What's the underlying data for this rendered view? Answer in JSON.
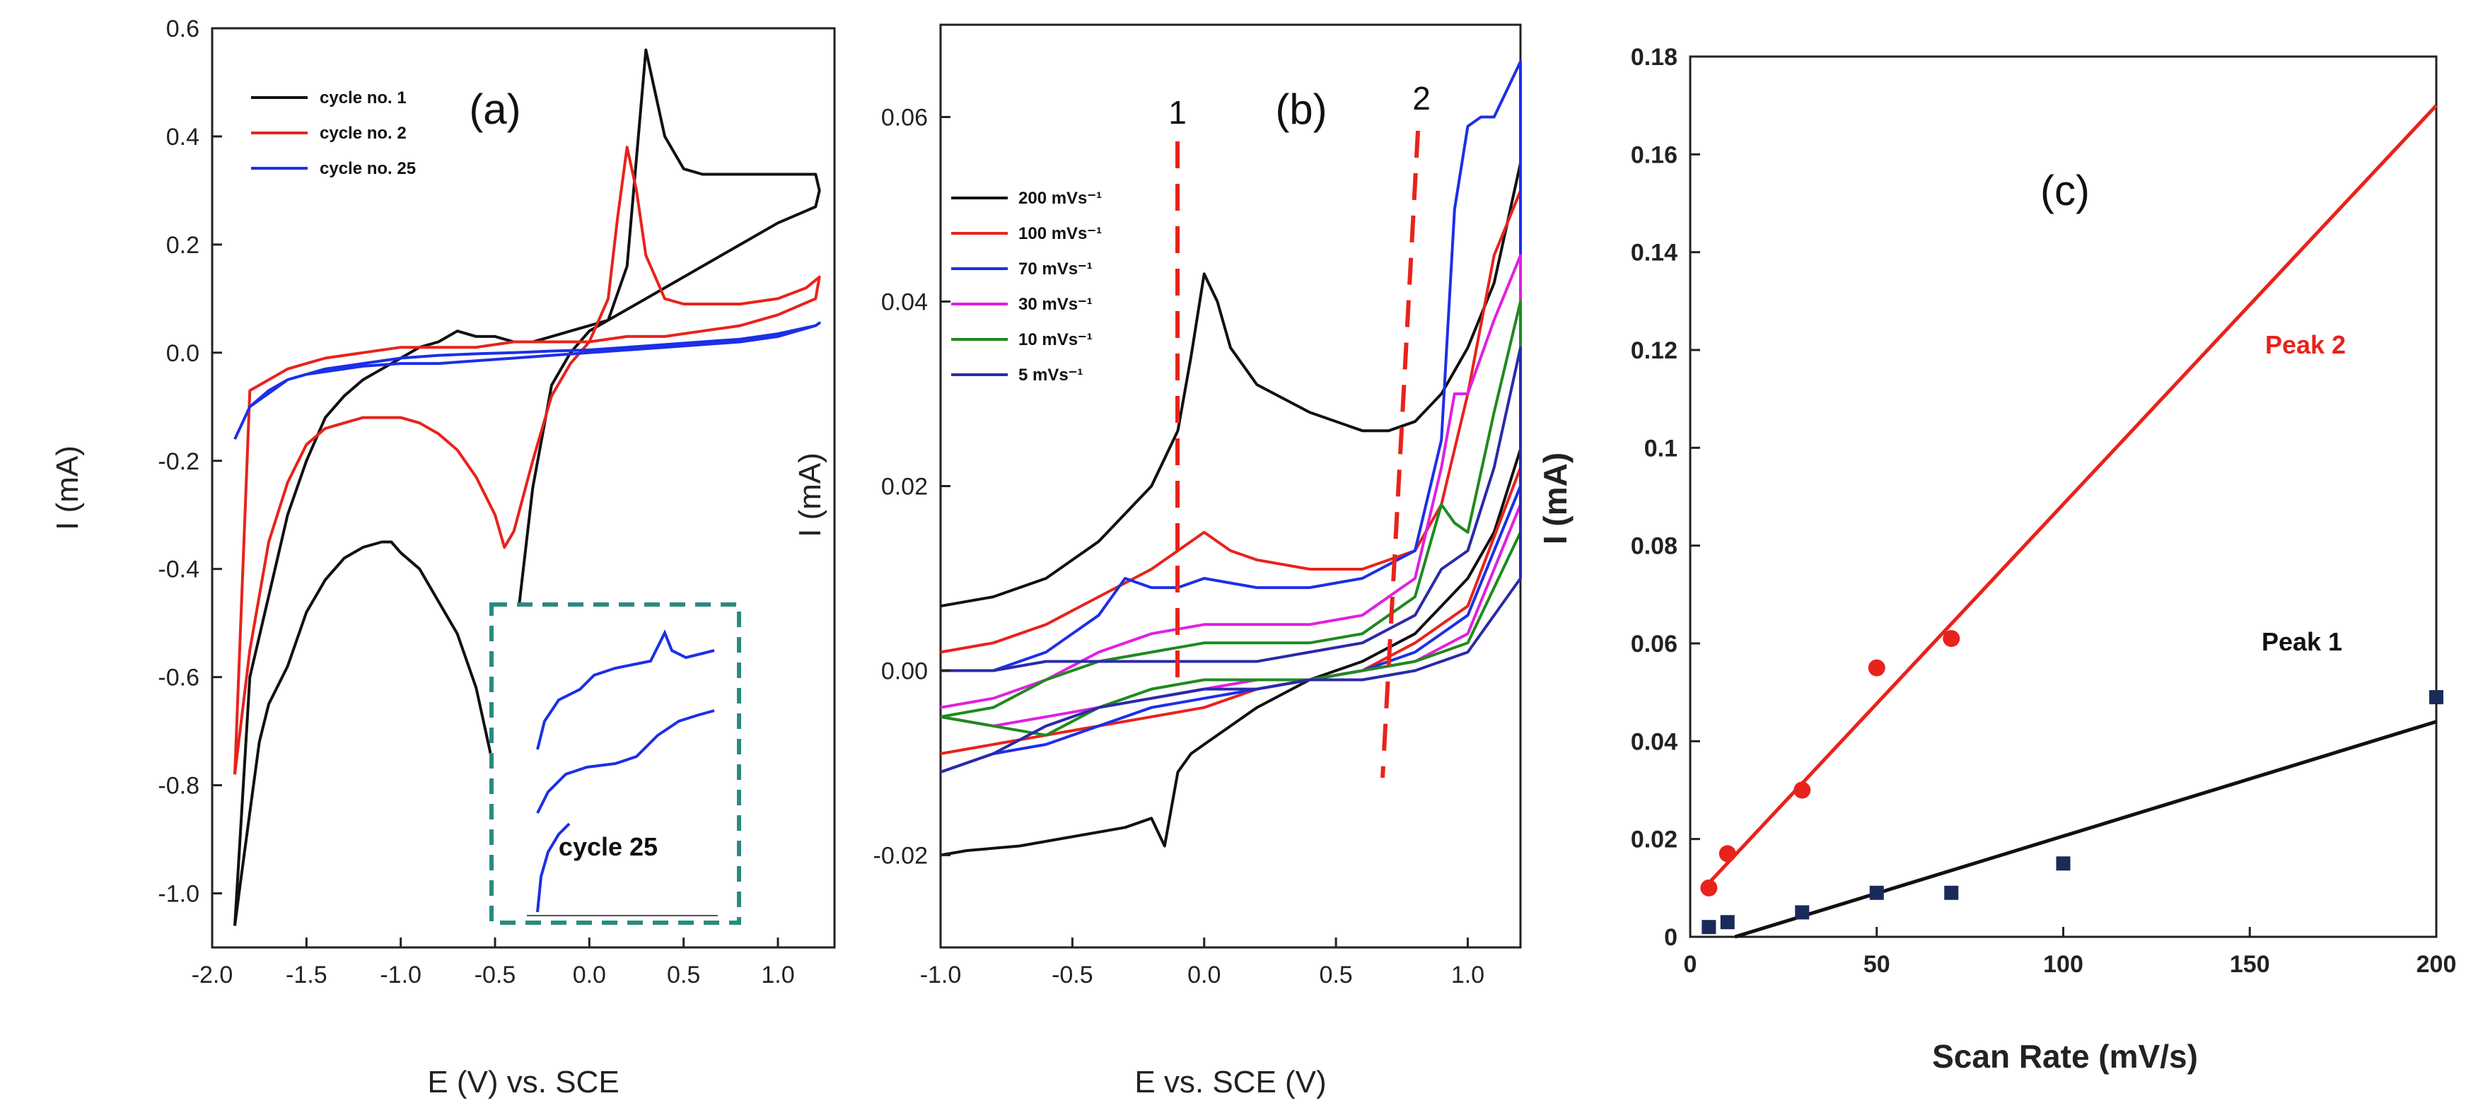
{
  "chart_data": [
    {
      "panel": "a",
      "type": "line",
      "panel_label": "(a)",
      "xlabel": "E (V) vs. SCE",
      "ylabel": "I (mA)",
      "xlim": [
        -2.0,
        1.3
      ],
      "ylim": [
        -1.1,
        0.6
      ],
      "xticks": [
        "-2.0",
        "-1.5",
        "-1.0",
        "-0.5",
        "0.0",
        "0.5",
        "1.0"
      ],
      "yticks": [
        "0.6",
        "0.4",
        "0.2",
        "0.0",
        "-0.2",
        "-0.4",
        "-0.6",
        "-0.8",
        "-1.0"
      ],
      "legend_position": "top-left",
      "series": [
        {
          "name": "cycle no. 1",
          "color": "#111111",
          "x": [
            -1.88,
            -1.85,
            -1.8,
            -1.75,
            -1.7,
            -1.6,
            -1.5,
            -1.4,
            -1.3,
            -1.2,
            -1.1,
            -1.05,
            -1.0,
            -0.9,
            -0.8,
            -0.7,
            -0.6,
            -0.55,
            -0.5,
            -0.45,
            -0.4,
            -0.3,
            -0.2,
            -0.1,
            0.0,
            0.1,
            0.2,
            0.3,
            0.4,
            0.5,
            0.6,
            0.7,
            0.8,
            0.9,
            1.0,
            1.1,
            1.2,
            1.22,
            1.2,
            1.0,
            0.8,
            0.6,
            0.4,
            0.2,
            0.1,
            0.0,
            -0.1,
            -0.2,
            -0.3,
            -0.4,
            -0.5,
            -0.6,
            -0.7,
            -0.75,
            -0.8,
            -0.9,
            -1.0,
            -1.1,
            -1.2,
            -1.3,
            -1.4,
            -1.5,
            -1.6,
            -1.7,
            -1.8,
            -1.88
          ],
          "y": [
            -1.06,
            -0.98,
            -0.85,
            -0.72,
            -0.65,
            -0.58,
            -0.48,
            -0.42,
            -0.38,
            -0.36,
            -0.35,
            -0.35,
            -0.37,
            -0.4,
            -0.46,
            -0.52,
            -0.62,
            -0.7,
            -0.78,
            -0.72,
            -0.55,
            -0.25,
            -0.06,
            0.0,
            0.04,
            0.06,
            0.16,
            0.56,
            0.4,
            0.34,
            0.33,
            0.33,
            0.33,
            0.33,
            0.33,
            0.33,
            0.33,
            0.3,
            0.27,
            0.24,
            0.2,
            0.16,
            0.12,
            0.08,
            0.06,
            0.05,
            0.04,
            0.03,
            0.02,
            0.02,
            0.03,
            0.03,
            0.04,
            0.03,
            0.02,
            0.01,
            -0.01,
            -0.03,
            -0.05,
            -0.08,
            -0.12,
            -0.2,
            -0.3,
            -0.45,
            -0.6,
            -1.06
          ]
        },
        {
          "name": "cycle no. 2",
          "color": "#e8231b",
          "x": [
            -1.88,
            -1.8,
            -1.7,
            -1.6,
            -1.5,
            -1.4,
            -1.3,
            -1.2,
            -1.1,
            -1.0,
            -0.9,
            -0.8,
            -0.7,
            -0.6,
            -0.5,
            -0.45,
            -0.4,
            -0.3,
            -0.2,
            -0.1,
            0.0,
            0.1,
            0.15,
            0.2,
            0.25,
            0.3,
            0.4,
            0.5,
            0.6,
            0.8,
            1.0,
            1.15,
            1.22,
            1.2,
            1.0,
            0.8,
            0.6,
            0.4,
            0.2,
            0.0,
            -0.2,
            -0.4,
            -0.6,
            -0.8,
            -1.0,
            -1.2,
            -1.4,
            -1.5,
            -1.6,
            -1.7,
            -1.8,
            -1.88
          ],
          "y": [
            -0.78,
            -0.55,
            -0.35,
            -0.24,
            -0.17,
            -0.14,
            -0.13,
            -0.12,
            -0.12,
            -0.12,
            -0.13,
            -0.15,
            -0.18,
            -0.23,
            -0.3,
            -0.36,
            -0.33,
            -0.2,
            -0.08,
            -0.02,
            0.02,
            0.1,
            0.25,
            0.38,
            0.3,
            0.18,
            0.1,
            0.09,
            0.09,
            0.09,
            0.1,
            0.12,
            0.14,
            0.1,
            0.07,
            0.05,
            0.04,
            0.03,
            0.03,
            0.02,
            0.02,
            0.02,
            0.01,
            0.01,
            0.01,
            0.0,
            -0.01,
            -0.02,
            -0.03,
            -0.05,
            -0.07,
            -0.78
          ]
        },
        {
          "name": "cycle no. 25",
          "color": "#1c2fe8",
          "x": [
            -1.88,
            -1.8,
            -1.7,
            -1.6,
            -1.5,
            -1.4,
            -1.3,
            -1.2,
            -1.0,
            -0.8,
            -0.6,
            -0.4,
            -0.2,
            0.0,
            0.2,
            0.4,
            0.6,
            0.8,
            1.0,
            1.1,
            1.2,
            1.22,
            1.2,
            1.0,
            0.8,
            0.6,
            0.4,
            0.2,
            0.0,
            -0.2,
            -0.4,
            -0.6,
            -0.8,
            -1.0,
            -1.2,
            -1.4,
            -1.6,
            -1.8,
            -1.88
          ],
          "y": [
            -0.16,
            -0.1,
            -0.07,
            -0.05,
            -0.04,
            -0.035,
            -0.03,
            -0.025,
            -0.02,
            -0.02,
            -0.015,
            -0.01,
            -0.005,
            0.0,
            0.005,
            0.01,
            0.015,
            0.02,
            0.03,
            0.04,
            0.05,
            0.055,
            0.05,
            0.035,
            0.025,
            0.02,
            0.015,
            0.01,
            0.005,
            0.003,
            0.0,
            -0.002,
            -0.005,
            -0.01,
            -0.02,
            -0.03,
            -0.05,
            -0.1,
            -0.16
          ]
        }
      ],
      "inset_label": "cycle 25"
    },
    {
      "panel": "b",
      "type": "line",
      "panel_label": "(b)",
      "xlabel": "E vs. SCE (V)",
      "ylabel": "I (mA)",
      "xlim": [
        -1.0,
        1.2
      ],
      "ylim": [
        -0.03,
        0.07
      ],
      "xticks": [
        "-1.0",
        "-0.5",
        "0.0",
        "0.5",
        "1.0"
      ],
      "yticks": [
        "0.06",
        "0.04",
        "0.02",
        "0.00",
        "-0.02"
      ],
      "legend_position": "top-left",
      "peak_markers": [
        "1",
        "2"
      ],
      "series": [
        {
          "name": "200 mVs⁻¹",
          "color": "#111111",
          "x": [
            -1.0,
            -0.8,
            -0.6,
            -0.4,
            -0.2,
            -0.1,
            -0.05,
            0.0,
            0.05,
            0.1,
            0.2,
            0.4,
            0.6,
            0.7,
            0.8,
            0.9,
            1.0,
            1.1,
            1.2,
            1.2,
            1.1,
            1.0,
            0.9,
            0.8,
            0.6,
            0.4,
            0.2,
            0.0,
            -0.05,
            -0.1,
            -0.15,
            -0.2,
            -0.3,
            -0.5,
            -0.7,
            -0.9,
            -1.0
          ],
          "y": [
            0.007,
            0.008,
            0.01,
            0.014,
            0.02,
            0.026,
            0.034,
            0.043,
            0.04,
            0.035,
            0.031,
            0.028,
            0.026,
            0.026,
            0.027,
            0.03,
            0.035,
            0.042,
            0.055,
            0.024,
            0.015,
            0.01,
            0.007,
            0.004,
            0.001,
            -0.001,
            -0.004,
            -0.008,
            -0.009,
            -0.011,
            -0.019,
            -0.016,
            -0.017,
            -0.018,
            -0.019,
            -0.0195,
            -0.02
          ]
        },
        {
          "name": "100 mVs⁻¹",
          "color": "#e8231b",
          "x": [
            -1.0,
            -0.8,
            -0.6,
            -0.4,
            -0.2,
            -0.1,
            0.0,
            0.1,
            0.2,
            0.4,
            0.6,
            0.8,
            0.9,
            1.0,
            1.1,
            1.2,
            1.2,
            1.0,
            0.8,
            0.6,
            0.4,
            0.2,
            0.0,
            -0.2,
            -0.4,
            -0.6,
            -0.8,
            -1.0
          ],
          "y": [
            0.002,
            0.003,
            0.005,
            0.008,
            0.011,
            0.013,
            0.015,
            0.013,
            0.012,
            0.011,
            0.011,
            0.013,
            0.018,
            0.03,
            0.045,
            0.052,
            0.022,
            0.007,
            0.003,
            0.0,
            -0.001,
            -0.002,
            -0.004,
            -0.005,
            -0.006,
            -0.007,
            -0.008,
            -0.009
          ]
        },
        {
          "name": "70 mVs⁻¹",
          "color": "#1c2fe8",
          "x": [
            -1.0,
            -0.8,
            -0.6,
            -0.4,
            -0.3,
            -0.2,
            -0.1,
            0.0,
            0.2,
            0.4,
            0.6,
            0.8,
            0.9,
            0.95,
            1.0,
            1.05,
            1.1,
            1.2,
            1.2,
            1.0,
            0.8,
            0.6,
            0.4,
            0.2,
            0.0,
            -0.2,
            -0.4,
            -0.6,
            -0.8,
            -1.0
          ],
          "y": [
            0.0,
            0.0,
            0.002,
            0.006,
            0.01,
            0.009,
            0.009,
            0.01,
            0.009,
            0.009,
            0.01,
            0.013,
            0.025,
            0.05,
            0.059,
            0.06,
            0.06,
            0.066,
            0.02,
            0.006,
            0.002,
            0.0,
            -0.001,
            -0.002,
            -0.003,
            -0.004,
            -0.006,
            -0.008,
            -0.009,
            -0.011
          ]
        },
        {
          "name": "30 mVs⁻¹",
          "color": "#e020e0",
          "x": [
            -1.0,
            -0.8,
            -0.6,
            -0.4,
            -0.2,
            0.0,
            0.2,
            0.4,
            0.6,
            0.8,
            0.9,
            0.95,
            1.0,
            1.1,
            1.2,
            1.2,
            1.0,
            0.8,
            0.6,
            0.4,
            0.2,
            0.0,
            -0.2,
            -0.4,
            -0.6,
            -0.8,
            -1.0
          ],
          "y": [
            -0.004,
            -0.003,
            -0.001,
            0.002,
            0.004,
            0.005,
            0.005,
            0.005,
            0.006,
            0.01,
            0.022,
            0.03,
            0.03,
            0.038,
            0.045,
            0.018,
            0.004,
            0.001,
            0.0,
            -0.001,
            -0.001,
            -0.002,
            -0.003,
            -0.004,
            -0.005,
            -0.006,
            -0.005
          ]
        },
        {
          "name": "10 mVs⁻¹",
          "color": "#1f8a1f",
          "x": [
            -1.0,
            -0.8,
            -0.6,
            -0.4,
            -0.2,
            0.0,
            0.2,
            0.4,
            0.6,
            0.8,
            0.9,
            0.95,
            1.0,
            1.1,
            1.2,
            1.2,
            1.0,
            0.8,
            0.6,
            0.4,
            0.2,
            0.0,
            -0.2,
            -0.4,
            -0.6,
            -0.8,
            -1.0
          ],
          "y": [
            -0.005,
            -0.004,
            -0.001,
            0.001,
            0.002,
            0.003,
            0.003,
            0.003,
            0.004,
            0.008,
            0.018,
            0.016,
            0.015,
            0.028,
            0.04,
            0.015,
            0.003,
            0.001,
            0.0,
            -0.001,
            -0.001,
            -0.001,
            -0.002,
            -0.004,
            -0.007,
            -0.006,
            -0.005
          ]
        },
        {
          "name": "5 mVs⁻¹",
          "color": "#2a2aa8",
          "x": [
            -1.0,
            -0.8,
            -0.6,
            -0.4,
            -0.2,
            0.0,
            0.2,
            0.4,
            0.6,
            0.8,
            0.9,
            1.0,
            1.1,
            1.2,
            1.2,
            1.0,
            0.8,
            0.6,
            0.4,
            0.2,
            0.0,
            -0.2,
            -0.4,
            -0.6,
            -0.8,
            -1.0
          ],
          "y": [
            0.0,
            0.0,
            0.001,
            0.001,
            0.001,
            0.001,
            0.001,
            0.002,
            0.003,
            0.006,
            0.011,
            0.013,
            0.022,
            0.035,
            0.01,
            0.002,
            0.0,
            -0.001,
            -0.001,
            -0.002,
            -0.002,
            -0.003,
            -0.004,
            -0.006,
            -0.009,
            -0.011
          ]
        }
      ]
    },
    {
      "panel": "c",
      "type": "scatter",
      "panel_label": "(c)",
      "xlabel": "Scan Rate (mV/s)",
      "ylabel": "I (mA)",
      "xlim": [
        0,
        200
      ],
      "ylim": [
        0,
        0.18
      ],
      "xticks": [
        "0",
        "50",
        "100",
        "150",
        "200"
      ],
      "yticks": [
        "0.18",
        "0.16",
        "0.14",
        "0.12",
        "0.1",
        "0.08",
        "0.06",
        "0.04",
        "0.02",
        "0"
      ],
      "series": [
        {
          "name": "Peak 2",
          "color": "#e8231b",
          "marker": "circle",
          "x": [
            5,
            10,
            30,
            50,
            70
          ],
          "y": [
            0.01,
            0.017,
            0.03,
            0.055,
            0.061
          ],
          "fit": {
            "x": [
              5,
              200
            ],
            "y": [
              0.011,
              0.17
            ]
          }
        },
        {
          "name": "Peak 1",
          "color": "#111111",
          "marker": "square",
          "marker_color": "#1a2a5a",
          "x": [
            5,
            10,
            30,
            50,
            70,
            100,
            200
          ],
          "y": [
            0.002,
            0.003,
            0.005,
            0.009,
            0.009,
            0.015,
            0.049
          ],
          "fit": {
            "x": [
              12,
              200
            ],
            "y": [
              0.0,
              0.044
            ]
          }
        }
      ]
    }
  ]
}
